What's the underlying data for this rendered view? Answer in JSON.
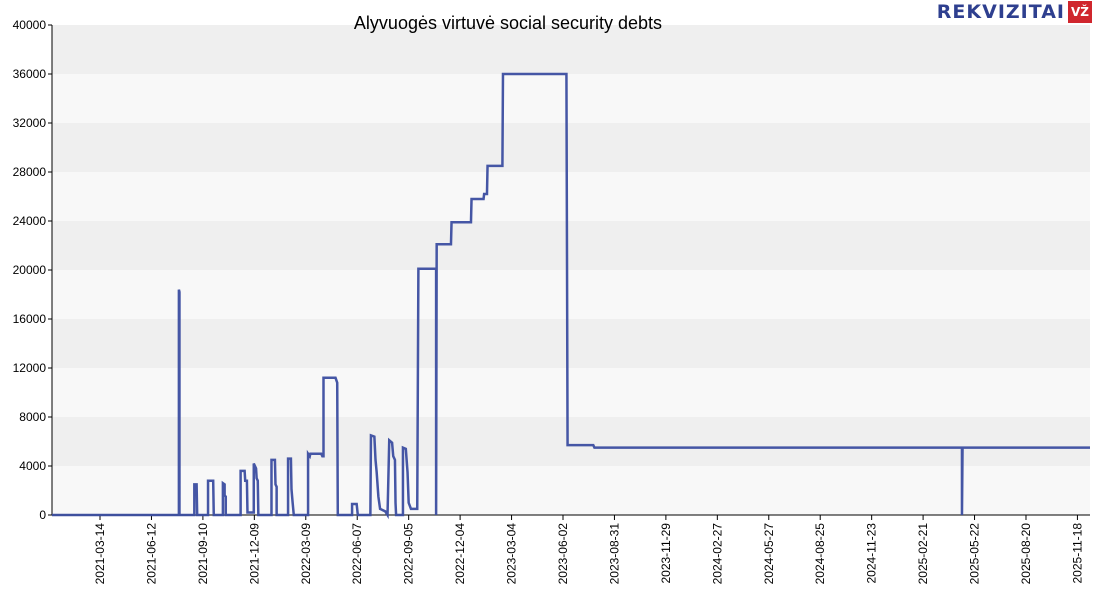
{
  "chart_data": {
    "type": "line",
    "title": "Alyvuogės virtuvė social security debts",
    "xlabel": "",
    "ylabel": "",
    "ylim": [
      0,
      40000
    ],
    "yticks": [
      0,
      4000,
      8000,
      12000,
      16000,
      20000,
      24000,
      28000,
      32000,
      36000,
      40000
    ],
    "xlim": [
      "2020-12-20",
      "2025-12-10"
    ],
    "xticks": [
      "2021-03-14",
      "2021-06-12",
      "2021-09-10",
      "2021-12-09",
      "2022-03-09",
      "2022-06-07",
      "2022-09-05",
      "2022-12-04",
      "2023-03-04",
      "2023-06-02",
      "2023-08-31",
      "2023-11-29",
      "2024-02-27",
      "2024-05-27",
      "2024-08-25",
      "2024-11-23",
      "2025-02-21",
      "2025-05-22",
      "2025-08-20",
      "2025-11-18"
    ],
    "grid": "horizontal-bands",
    "line_color": "#3b4da0",
    "series": [
      {
        "name": "",
        "points": [
          [
            "2020-12-20",
            0
          ],
          [
            "2021-07-30",
            0
          ],
          [
            "2021-07-30",
            18400
          ],
          [
            "2021-07-31",
            18200
          ],
          [
            "2021-07-31",
            0
          ],
          [
            "2021-08-26",
            0
          ],
          [
            "2021-08-26",
            2500
          ],
          [
            "2021-08-30",
            2500
          ],
          [
            "2021-08-31",
            0
          ],
          [
            "2021-09-19",
            0
          ],
          [
            "2021-09-19",
            2800
          ],
          [
            "2021-09-28",
            2800
          ],
          [
            "2021-09-29",
            0
          ],
          [
            "2021-10-15",
            0
          ],
          [
            "2021-10-15",
            2600
          ],
          [
            "2021-10-18",
            2500
          ],
          [
            "2021-10-18",
            1600
          ],
          [
            "2021-10-20",
            1500
          ],
          [
            "2021-10-20",
            0
          ],
          [
            "2021-11-15",
            0
          ],
          [
            "2021-11-15",
            3600
          ],
          [
            "2021-11-22",
            3600
          ],
          [
            "2021-11-23",
            2800
          ],
          [
            "2021-11-26",
            2800
          ],
          [
            "2021-11-27",
            200
          ],
          [
            "2021-12-08",
            200
          ],
          [
            "2021-12-08",
            4200
          ],
          [
            "2021-12-12",
            3800
          ],
          [
            "2021-12-13",
            3000
          ],
          [
            "2021-12-15",
            2800
          ],
          [
            "2021-12-16",
            0
          ],
          [
            "2022-01-08",
            0
          ],
          [
            "2022-01-08",
            4500
          ],
          [
            "2022-01-14",
            4500
          ],
          [
            "2022-01-15",
            2500
          ],
          [
            "2022-01-17",
            2300
          ],
          [
            "2022-01-17",
            0
          ],
          [
            "2022-02-06",
            0
          ],
          [
            "2022-02-06",
            4600
          ],
          [
            "2022-02-11",
            4600
          ],
          [
            "2022-02-12",
            2100
          ],
          [
            "2022-02-14",
            1000
          ],
          [
            "2022-02-16",
            0
          ],
          [
            "2022-03-13",
            0
          ],
          [
            "2022-03-13",
            5000
          ],
          [
            "2022-03-16",
            4800
          ],
          [
            "2022-03-17",
            5000
          ],
          [
            "2022-04-05",
            5000
          ],
          [
            "2022-04-07",
            4800
          ],
          [
            "2022-04-09",
            4800
          ],
          [
            "2022-04-09",
            11200
          ],
          [
            "2022-04-30",
            11200
          ],
          [
            "2022-05-03",
            10800
          ],
          [
            "2022-05-04",
            0
          ],
          [
            "2022-05-29",
            0
          ],
          [
            "2022-05-29",
            900
          ],
          [
            "2022-06-06",
            900
          ],
          [
            "2022-06-08",
            0
          ],
          [
            "2022-06-30",
            0
          ],
          [
            "2022-07-01",
            6500
          ],
          [
            "2022-07-07",
            6400
          ],
          [
            "2022-07-09",
            4500
          ],
          [
            "2022-07-11",
            3500
          ],
          [
            "2022-07-14",
            1500
          ],
          [
            "2022-07-17",
            500
          ],
          [
            "2022-07-26",
            300
          ],
          [
            "2022-07-30",
            0
          ],
          [
            "2022-08-02",
            6100
          ],
          [
            "2022-08-07",
            5900
          ],
          [
            "2022-08-09",
            4800
          ],
          [
            "2022-08-12",
            4500
          ],
          [
            "2022-08-13",
            1000
          ],
          [
            "2022-08-14",
            0
          ],
          [
            "2022-08-26",
            0
          ],
          [
            "2022-08-26",
            5500
          ],
          [
            "2022-08-31",
            5400
          ],
          [
            "2022-09-03",
            3500
          ],
          [
            "2022-09-05",
            1000
          ],
          [
            "2022-09-09",
            500
          ],
          [
            "2022-09-20",
            500
          ],
          [
            "2022-09-22",
            20100
          ],
          [
            "2022-10-23",
            20100
          ],
          [
            "2022-10-23",
            0
          ],
          [
            "2022-10-24",
            22100
          ],
          [
            "2022-11-18",
            22100
          ],
          [
            "2022-11-19",
            23900
          ],
          [
            "2022-12-23",
            23900
          ],
          [
            "2022-12-24",
            25800
          ],
          [
            "2023-01-14",
            25800
          ],
          [
            "2023-01-15",
            26200
          ],
          [
            "2023-01-20",
            26200
          ],
          [
            "2023-01-21",
            28500
          ],
          [
            "2023-02-16",
            28500
          ],
          [
            "2023-02-17",
            36000
          ],
          [
            "2023-06-08",
            36000
          ],
          [
            "2023-06-10",
            5700
          ],
          [
            "2023-07-25",
            5700
          ],
          [
            "2023-07-27",
            5500
          ],
          [
            "2025-04-30",
            5500
          ],
          [
            "2025-04-30",
            0
          ],
          [
            "2025-05-01",
            5500
          ],
          [
            "2025-12-10",
            5500
          ]
        ]
      }
    ]
  },
  "logo": {
    "text": "REKVIZITAI",
    "badge": "VŽ"
  }
}
